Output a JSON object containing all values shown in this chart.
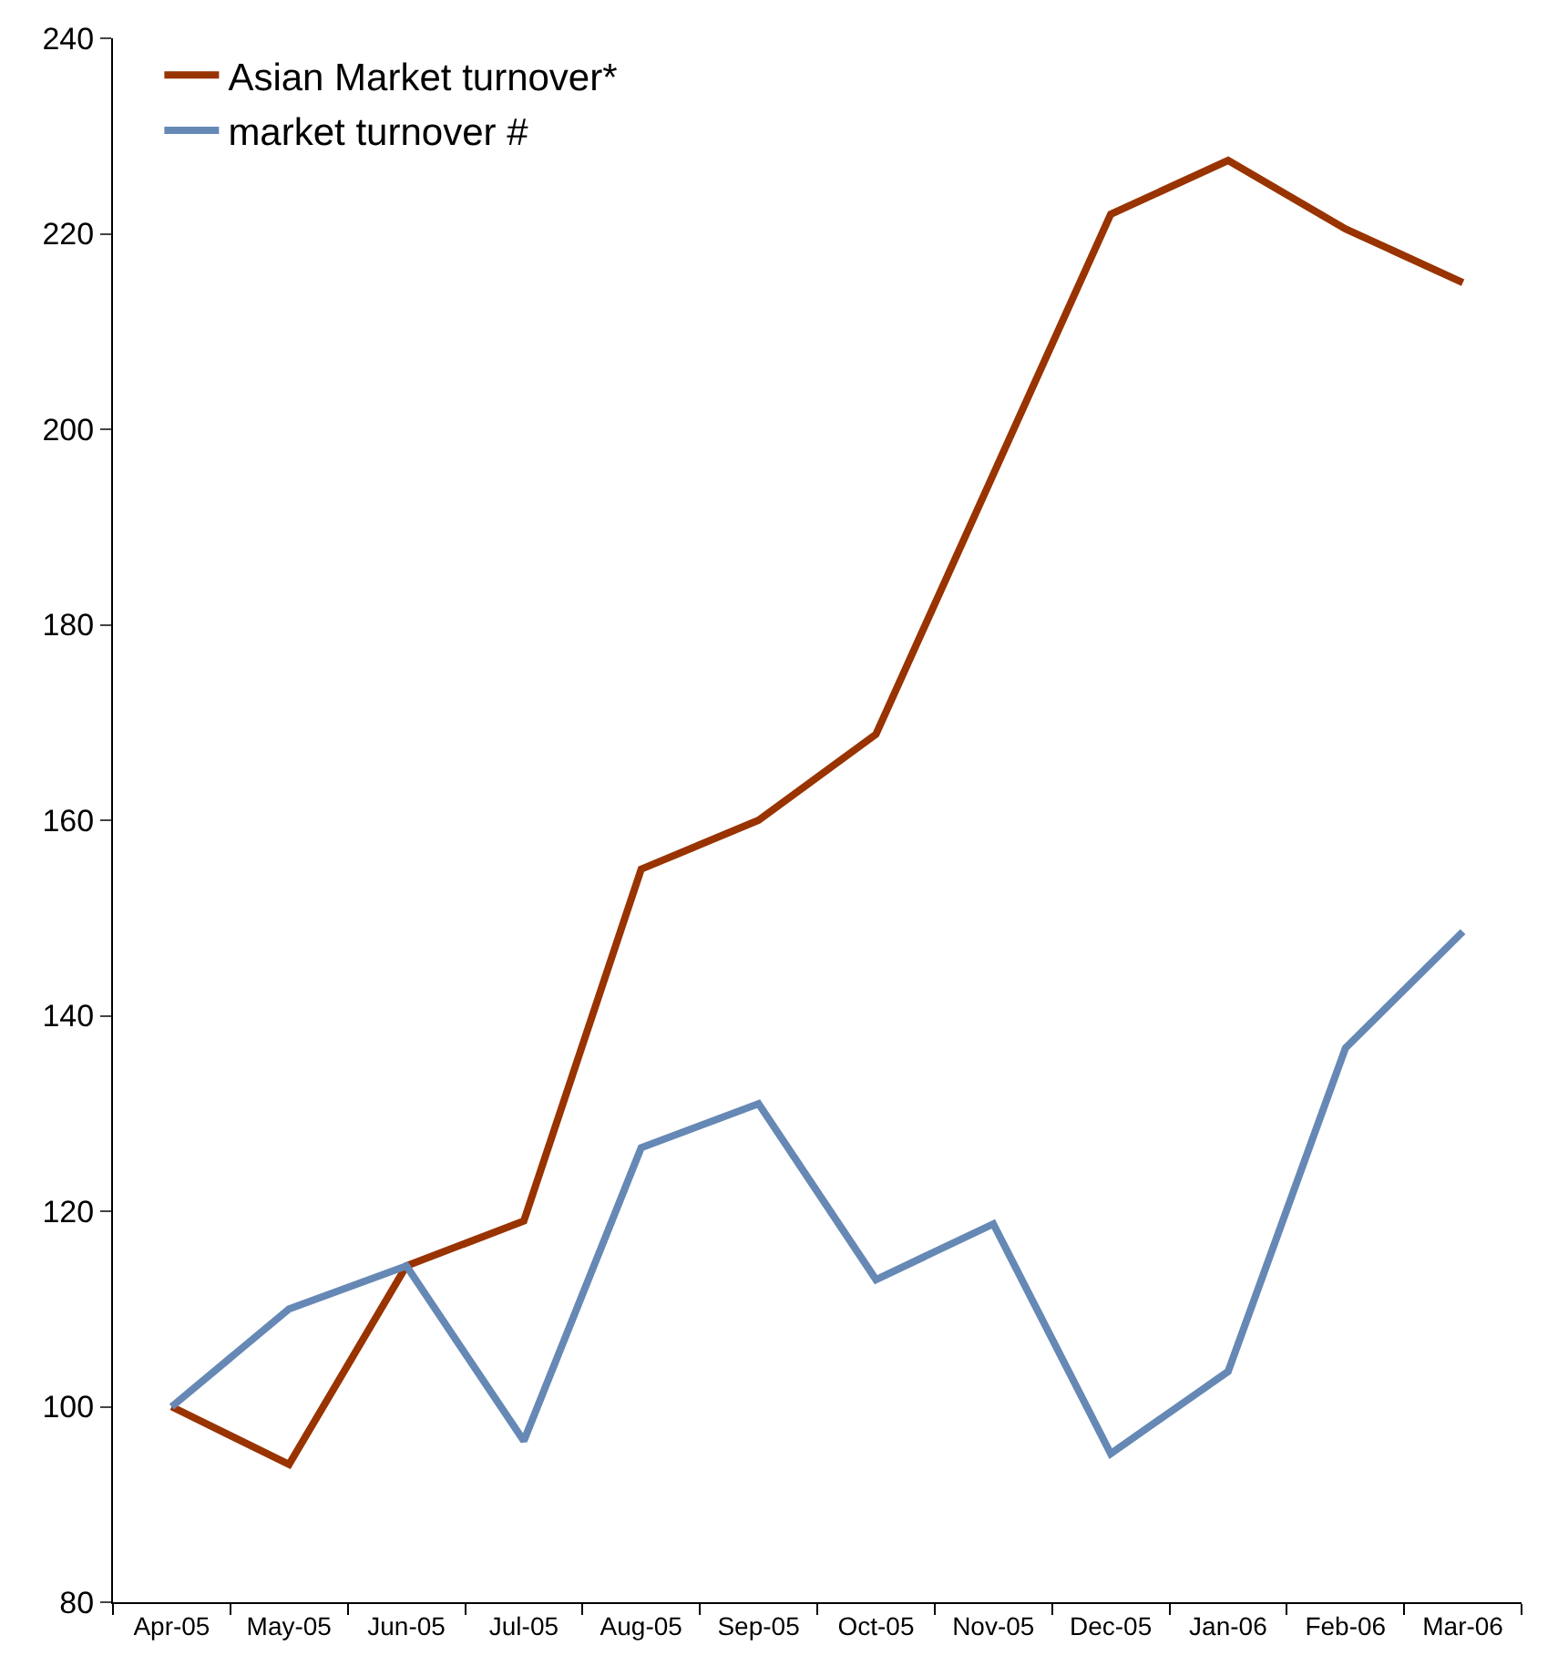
{
  "chart_data": {
    "type": "line",
    "categories": [
      "Apr-05",
      "May-05",
      "Jun-05",
      "Jul-05",
      "Aug-05",
      "Sep-05",
      "Oct-05",
      "Nov-05",
      "Dec-05",
      "Jan-06",
      "Feb-06",
      "Mar-06"
    ],
    "series": [
      {
        "name": "Asian Market turnover*",
        "color": "#993300",
        "values": [
          100,
          94.1,
          114.4,
          119,
          155,
          160,
          168.8,
          195.4,
          222,
          227.5,
          220.5,
          215
        ]
      },
      {
        "name": "market turnover #",
        "color": "#6688b5",
        "values": [
          100,
          110,
          114.4,
          96.5,
          126.5,
          131,
          113,
          118.7,
          95.2,
          103.6,
          136.7,
          148.6
        ]
      }
    ],
    "ylim": [
      80,
      240
    ],
    "yticks": [
      80,
      100,
      120,
      140,
      160,
      180,
      200,
      220,
      240
    ],
    "legend": "top left",
    "marker": "none",
    "line_style": "solid"
  }
}
